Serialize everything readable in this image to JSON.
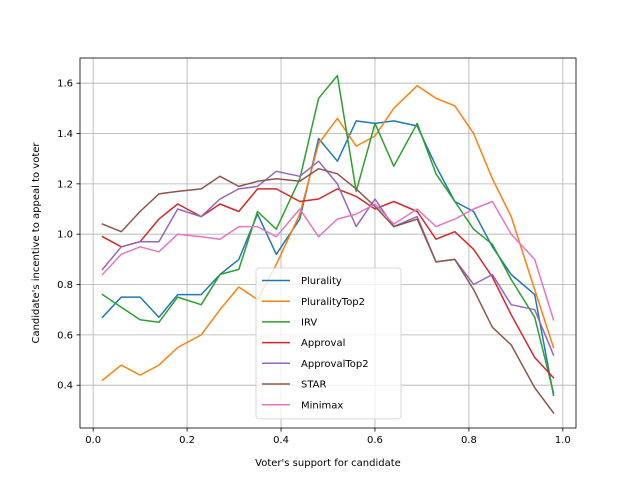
{
  "chart_data": {
    "type": "line",
    "title": "",
    "xlabel": "Voter's support for candidate",
    "ylabel": "Candidate's incentive to appeal to voter",
    "xlim": [
      -0.028,
      1.028
    ],
    "ylim": [
      0.23,
      1.7
    ],
    "xticks": [
      0.0,
      0.2,
      0.4,
      0.6,
      0.8,
      1.0
    ],
    "xtick_labels": [
      "0.0",
      "0.2",
      "0.4",
      "0.6",
      "0.8",
      "1.0"
    ],
    "yticks": [
      0.4,
      0.6,
      0.8,
      1.0,
      1.2,
      1.4,
      1.6
    ],
    "ytick_labels": [
      "0.4",
      "0.6",
      "0.8",
      "1.0",
      "1.2",
      "1.4",
      "1.6"
    ],
    "grid": true,
    "legend_position": "lower-center",
    "x": [
      0.02,
      0.06,
      0.1,
      0.14,
      0.18,
      0.23,
      0.27,
      0.31,
      0.35,
      0.39,
      0.44,
      0.48,
      0.52,
      0.56,
      0.6,
      0.64,
      0.69,
      0.73,
      0.77,
      0.81,
      0.85,
      0.89,
      0.94,
      0.98
    ],
    "series": [
      {
        "name": "Plurality",
        "color": "#1f77b4",
        "values": [
          0.67,
          0.75,
          0.75,
          0.67,
          0.76,
          0.76,
          0.84,
          0.9,
          1.08,
          0.92,
          1.06,
          1.38,
          1.29,
          1.45,
          1.44,
          1.45,
          1.43,
          1.27,
          1.13,
          1.09,
          0.95,
          0.84,
          0.76,
          0.36
        ]
      },
      {
        "name": "PluralityTop2",
        "color": "#ff7f0e",
        "values": [
          0.42,
          0.48,
          0.44,
          0.48,
          0.55,
          0.6,
          0.7,
          0.79,
          0.74,
          0.88,
          1.08,
          1.36,
          1.46,
          1.35,
          1.39,
          1.5,
          1.59,
          1.54,
          1.51,
          1.4,
          1.22,
          1.07,
          0.78,
          0.55
        ]
      },
      {
        "name": "IRV",
        "color": "#2ca02c",
        "values": [
          0.76,
          0.71,
          0.66,
          0.65,
          0.75,
          0.72,
          0.84,
          0.86,
          1.09,
          1.02,
          1.22,
          1.54,
          1.63,
          1.17,
          1.44,
          1.27,
          1.44,
          1.24,
          1.13,
          1.02,
          0.96,
          0.82,
          0.67,
          0.37
        ]
      },
      {
        "name": "Approval",
        "color": "#d62728",
        "values": [
          0.99,
          0.95,
          0.97,
          1.06,
          1.12,
          1.07,
          1.12,
          1.09,
          1.18,
          1.18,
          1.13,
          1.14,
          1.18,
          1.15,
          1.1,
          1.13,
          1.09,
          0.98,
          1.01,
          0.94,
          0.83,
          0.68,
          0.51,
          0.43
        ]
      },
      {
        "name": "ApprovalTop2",
        "color": "#9467bd",
        "values": [
          0.86,
          0.95,
          0.97,
          0.97,
          1.1,
          1.07,
          1.14,
          1.18,
          1.19,
          1.25,
          1.23,
          1.29,
          1.2,
          1.03,
          1.14,
          1.03,
          1.07,
          0.89,
          0.9,
          0.8,
          0.84,
          0.72,
          0.7,
          0.52
        ]
      },
      {
        "name": "STAR",
        "color": "#8c564b",
        "values": [
          1.04,
          1.01,
          1.09,
          1.16,
          1.17,
          1.18,
          1.23,
          1.19,
          1.21,
          1.22,
          1.21,
          1.26,
          1.24,
          1.18,
          1.11,
          1.03,
          1.06,
          0.89,
          0.9,
          0.78,
          0.63,
          0.56,
          0.39,
          0.29
        ]
      },
      {
        "name": "Minimax",
        "color": "#e377c2",
        "values": [
          0.84,
          0.92,
          0.95,
          0.93,
          1.0,
          0.99,
          0.98,
          1.03,
          1.03,
          0.99,
          1.1,
          0.99,
          1.06,
          1.08,
          1.12,
          1.04,
          1.1,
          1.03,
          1.06,
          1.1,
          1.13,
          1.0,
          0.9,
          0.66
        ]
      }
    ]
  }
}
